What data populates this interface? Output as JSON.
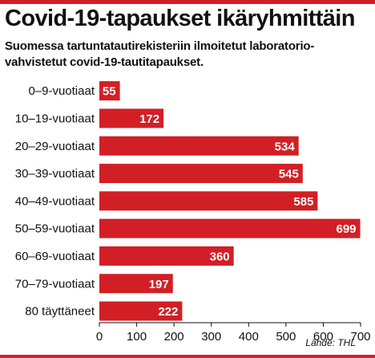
{
  "colors": {
    "accent": "#d21f26",
    "text": "#111111",
    "grid": "#000000"
  },
  "title": "Covid-19-tapaukset ikäryhmittäin",
  "subtitle": "Suomessa tartuntatautirekisteriin ilmoitetut laboratorio-vahvistetut covid-19-tautitapaukset.",
  "source": "Lähde: THL",
  "chart_data": {
    "type": "bar",
    "orientation": "horizontal",
    "categories": [
      "0–9-vuotiaat",
      "10–19-vuotiaat",
      "20–29-vuotiaat",
      "30–39-vuotiaat",
      "40–49-vuotiaat",
      "50–59-vuotiaat",
      "60–69-vuotiaat",
      "70–79-vuotiaat",
      "80 täyttäneet"
    ],
    "values": [
      55,
      172,
      534,
      545,
      585,
      699,
      360,
      197,
      222
    ],
    "xlim": [
      0,
      700
    ],
    "xticks": [
      0,
      100,
      200,
      300,
      400,
      500,
      600,
      700
    ],
    "data_labels": "inside-end",
    "grid": false
  }
}
